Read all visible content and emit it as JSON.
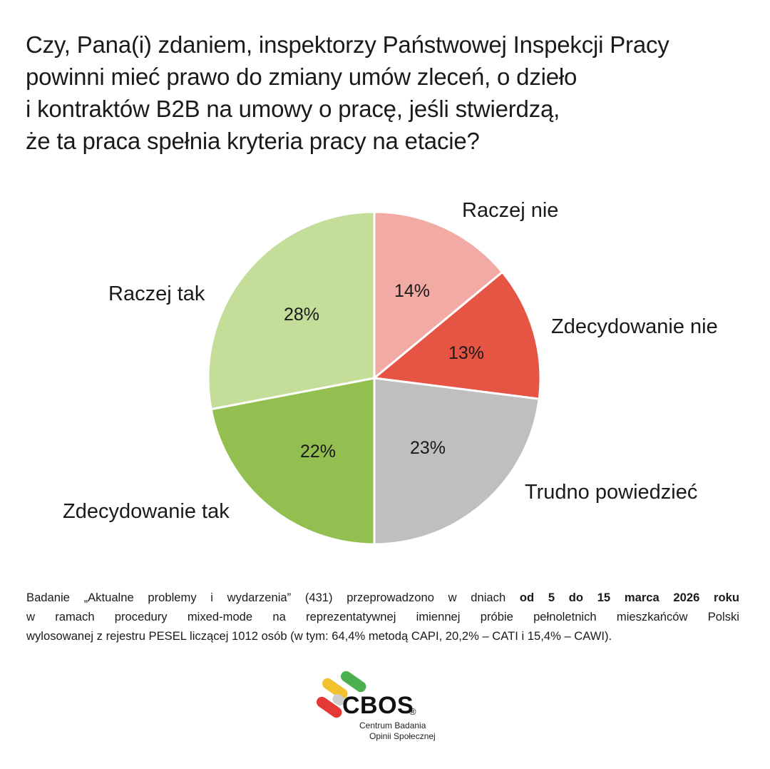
{
  "title_lines": [
    "Czy, Pana(i) zdaniem, inspektorzy Państwowej Inspekcji Pracy",
    "powinni mieć prawo do zmiany umów zleceń, o dzieło",
    "i kontraktów B2B na umowy o pracę, jeśli stwierdzą,",
    "że ta praca spełnia kryteria pracy na etacie?"
  ],
  "chart_data": {
    "type": "pie",
    "slices": [
      {
        "label": "Raczej nie",
        "value": 14,
        "value_label": "14%",
        "color": "#f2aaa5"
      },
      {
        "label": "Zdecydowanie nie",
        "value": 13,
        "value_label": "13%",
        "color": "#e65444"
      },
      {
        "label": "Trudno powiedzieć",
        "value": 23,
        "value_label": "23%",
        "color": "#bfbfbf"
      },
      {
        "label": "Zdecydowanie tak",
        "value": 22,
        "value_label": "22%",
        "color": "#93bf50"
      },
      {
        "label": "Raczej tak",
        "value": 28,
        "value_label": "28%",
        "color": "#c4de9a"
      }
    ],
    "start": "12 o'clock, clockwise"
  },
  "note": {
    "line1_pre": "Badanie „Aktualne problemy i wydarzenia” (431) przeprowadzono w dniach ",
    "line1_bold": "od 5 do 15 marca 2026 roku",
    "line2": "w ramach procedury mixed-mode na reprezentatywnej imiennej próbie pełnoletnich mieszkańców Polski",
    "line3": "wylosowanej z rejestru PESEL liczącej 1012 osób (w tym: 64,4% metodą CAPI, 20,2% – CATI i 15,4% – CAWI)."
  },
  "logo": {
    "name": "CBOS",
    "reg": "®",
    "sub1": "Centrum Badania",
    "sub2": "Opinii Społecznej",
    "pill_colors": [
      "#f2c12e",
      "#4caf50",
      "#e53935",
      "#cfcfcf"
    ]
  }
}
